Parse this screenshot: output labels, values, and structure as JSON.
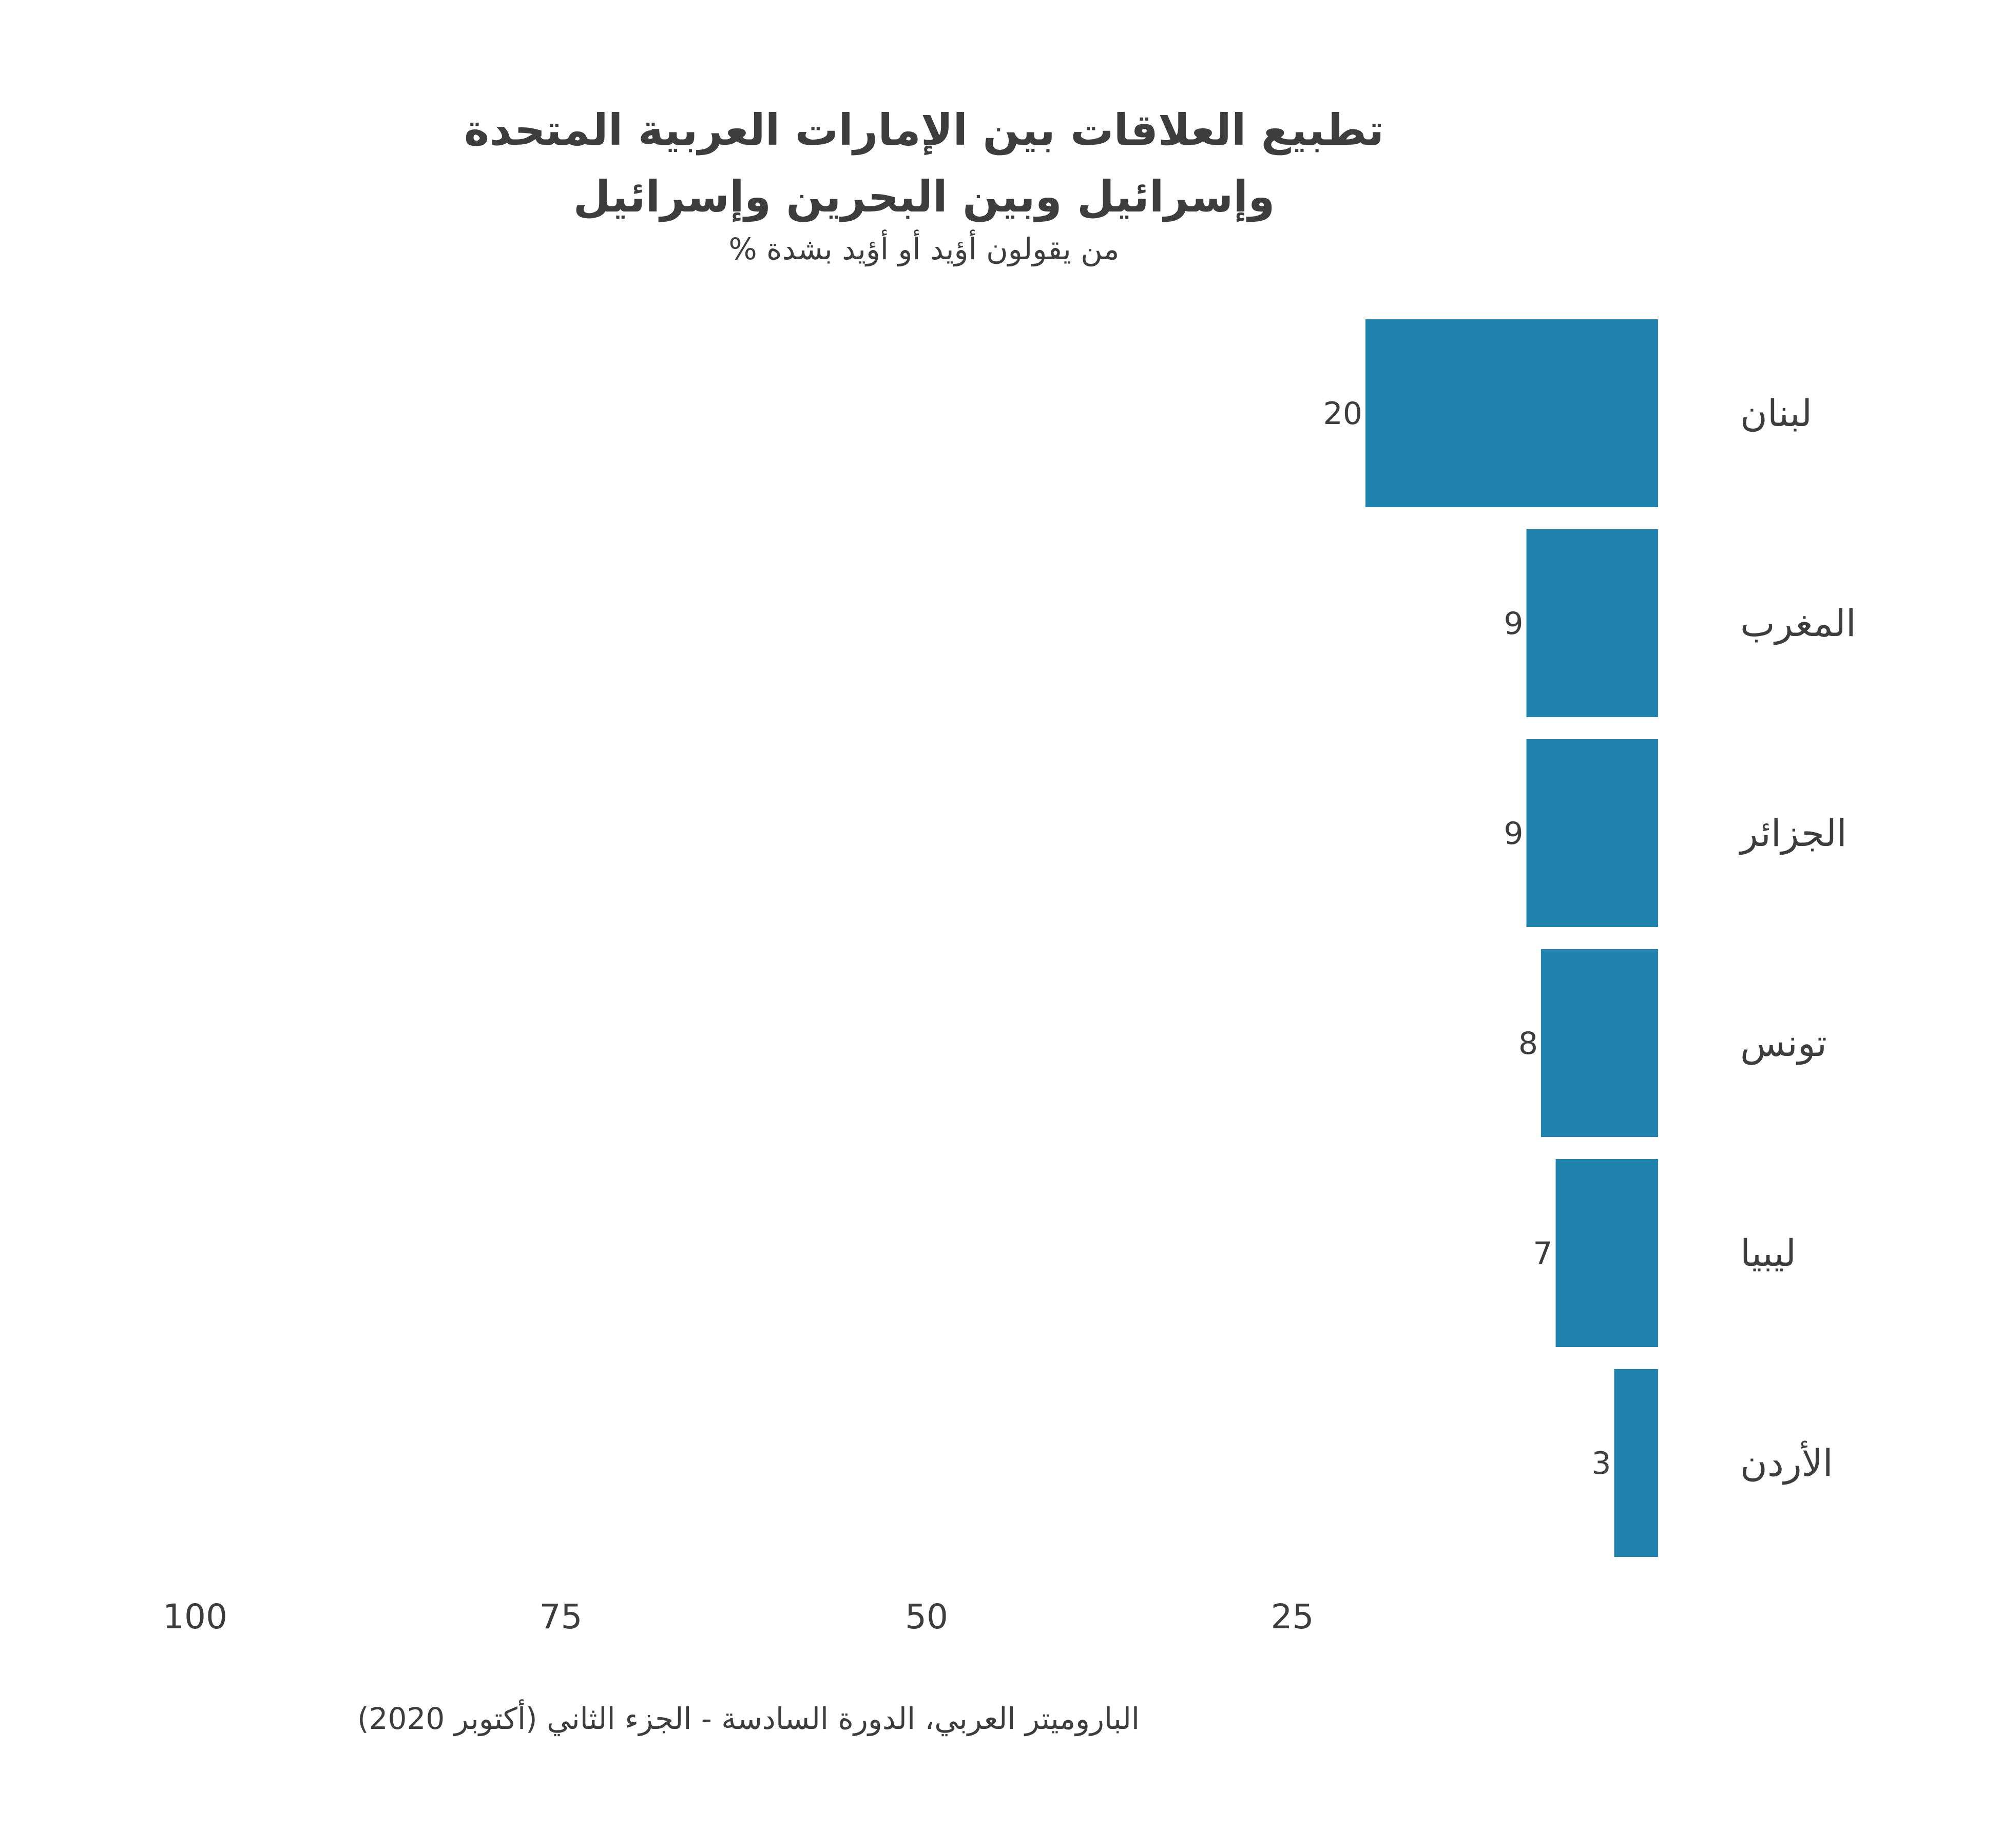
{
  "chart_data": {
    "type": "bar",
    "orientation": "horizontal",
    "direction": "right-to-left",
    "title_lines": [
      "تطبيع العلاقات بين الإمارات العربية المتحدة",
      "وإسرائيل وبين البحرين وإسرائيل"
    ],
    "subtitle": "% من يقولون أؤيد أو أؤيد بشدة",
    "categories": [
      "لبنان",
      "المغرب",
      "الجزائر",
      "تونس",
      "ليبيا",
      "الأردن"
    ],
    "values": [
      20,
      9,
      9,
      8,
      7,
      3
    ],
    "xlim": [
      0,
      100
    ],
    "xticks": [
      100,
      75,
      50,
      25
    ],
    "grid": false,
    "legend": "none",
    "bar_color": "#2083ad",
    "source": "الباروميتر العربي، الدورة السادسة - الجزء الثاني (أكتوبر 2020)"
  }
}
